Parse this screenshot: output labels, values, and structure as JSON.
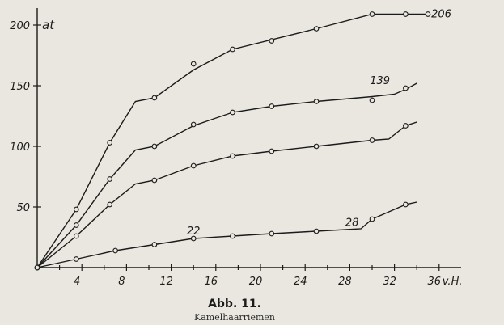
{
  "figure": {
    "title": "Abb. 11.",
    "caption": "Kamelhaarriemen"
  },
  "chart_data": {
    "type": "line",
    "title": "Abb. 11.",
    "subtitle": "Kamelhaarriemen",
    "xlabel": "v.H.",
    "ylabel": "at",
    "xlim": [
      0,
      36
    ],
    "ylim": [
      0,
      215
    ],
    "xticks": [
      4,
      8,
      12,
      16,
      20,
      24,
      28,
      32,
      36
    ],
    "yticks": [
      50,
      100,
      150,
      200
    ],
    "grid": false,
    "series": [
      {
        "name": "",
        "points": [
          [
            0,
            0
          ],
          [
            3.5,
            48
          ],
          [
            6.5,
            103
          ],
          [
            8.8,
            137
          ],
          [
            10.5,
            140
          ],
          [
            14,
            163
          ],
          [
            17.5,
            180
          ],
          [
            25,
            197
          ],
          [
            30,
            209
          ],
          [
            33,
            209
          ],
          [
            35,
            209
          ]
        ],
        "markers": [
          [
            0,
            0
          ],
          [
            3.5,
            48
          ],
          [
            6.5,
            103
          ],
          [
            10.5,
            140
          ],
          [
            14,
            168
          ],
          [
            17.5,
            180
          ],
          [
            21,
            187
          ],
          [
            25,
            197
          ],
          [
            30,
            209
          ],
          [
            33,
            209
          ],
          [
            35,
            209
          ]
        ]
      },
      {
        "name": "",
        "points": [
          [
            0,
            0
          ],
          [
            3.5,
            35
          ],
          [
            6.5,
            73
          ],
          [
            8.8,
            97
          ],
          [
            10.5,
            100
          ],
          [
            14,
            117
          ],
          [
            17.5,
            128
          ],
          [
            21,
            133
          ],
          [
            25,
            137
          ],
          [
            30,
            141
          ],
          [
            32,
            143
          ],
          [
            33,
            147
          ],
          [
            34,
            152
          ]
        ],
        "markers": [
          [
            0,
            0
          ],
          [
            3.5,
            35
          ],
          [
            6.5,
            73
          ],
          [
            10.5,
            100
          ],
          [
            14,
            118
          ],
          [
            17.5,
            128
          ],
          [
            21,
            133
          ],
          [
            25,
            137
          ],
          [
            30,
            138
          ],
          [
            33,
            148
          ]
        ]
      },
      {
        "name": "",
        "points": [
          [
            0,
            0
          ],
          [
            3.5,
            26
          ],
          [
            6.5,
            52
          ],
          [
            8.8,
            69
          ],
          [
            10.5,
            72
          ],
          [
            14,
            84
          ],
          [
            17.5,
            92
          ],
          [
            21,
            96
          ],
          [
            25,
            100
          ],
          [
            30,
            105
          ],
          [
            31.5,
            106
          ],
          [
            33,
            117
          ],
          [
            34,
            120
          ]
        ],
        "markers": [
          [
            0,
            0
          ],
          [
            3.5,
            26
          ],
          [
            6.5,
            52
          ],
          [
            10.5,
            72
          ],
          [
            14,
            84
          ],
          [
            17.5,
            92
          ],
          [
            21,
            96
          ],
          [
            25,
            100
          ],
          [
            30,
            105
          ],
          [
            33,
            117
          ]
        ]
      },
      {
        "name": "",
        "points": [
          [
            0,
            0
          ],
          [
            3.5,
            7
          ],
          [
            7,
            14
          ],
          [
            10.5,
            19
          ],
          [
            14,
            24
          ],
          [
            17.5,
            26
          ],
          [
            21,
            28
          ],
          [
            25,
            30
          ],
          [
            29,
            32
          ],
          [
            30,
            40
          ],
          [
            31.5,
            46
          ],
          [
            33,
            52
          ],
          [
            34,
            54
          ]
        ],
        "markers": [
          [
            0,
            0
          ],
          [
            3.5,
            7
          ],
          [
            7,
            14
          ],
          [
            10.5,
            19
          ],
          [
            14,
            24
          ],
          [
            17.5,
            26
          ],
          [
            21,
            28
          ],
          [
            25,
            30
          ],
          [
            30,
            40
          ],
          [
            33,
            52
          ]
        ]
      }
    ],
    "annotations": [
      {
        "text": "206",
        "x": 35.3,
        "y": 209
      },
      {
        "text": "139",
        "x": 29.8,
        "y": 154
      },
      {
        "text": "22",
        "x": 13.4,
        "y": 30
      },
      {
        "text": "28",
        "x": 27.6,
        "y": 37
      }
    ]
  }
}
